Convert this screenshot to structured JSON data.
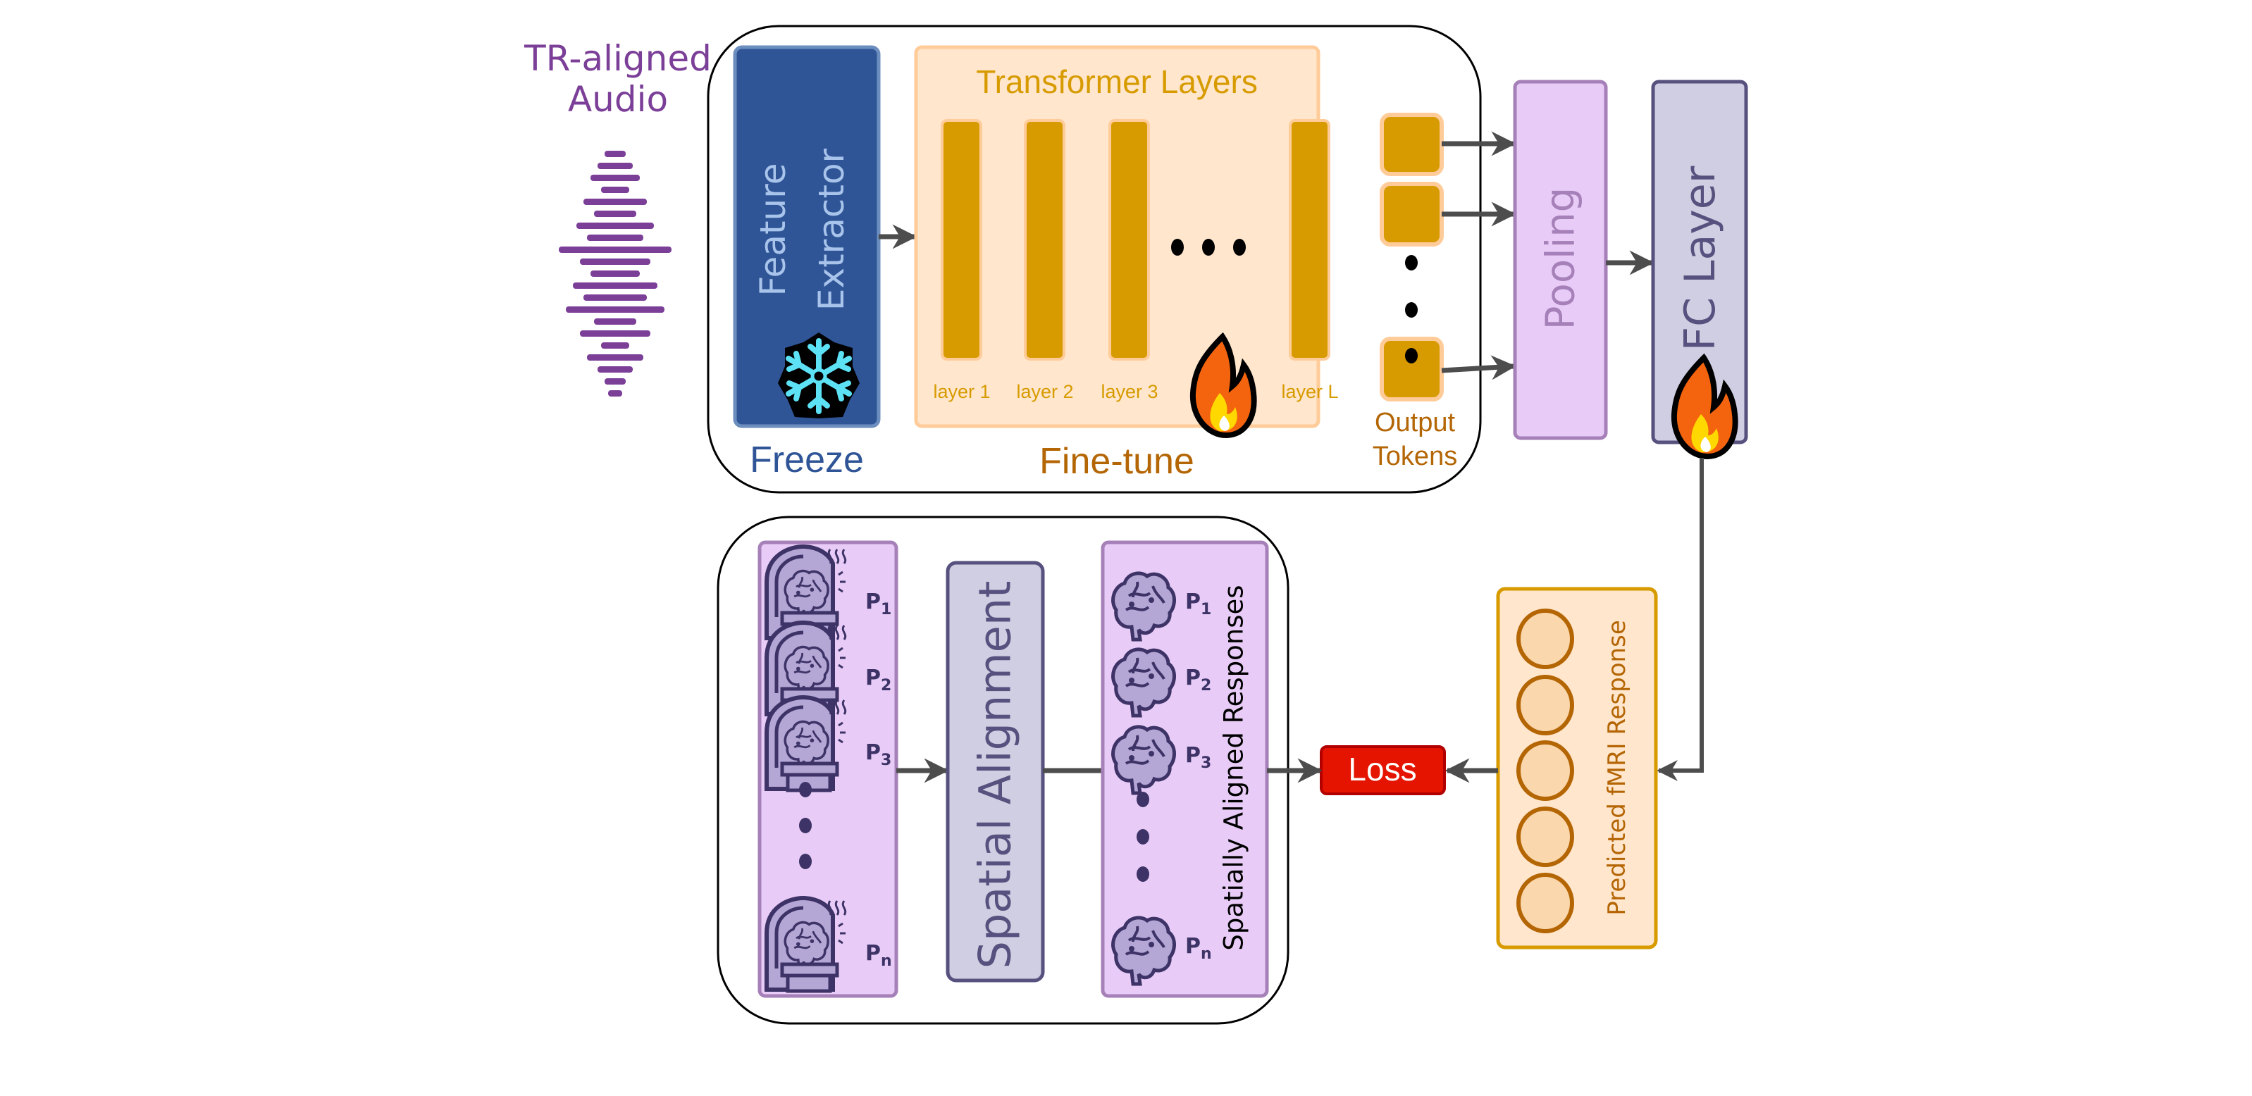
{
  "input": {
    "title_line1": "TR-aligned",
    "title_line2": "Audio"
  },
  "encoder": {
    "feature_extractor_line1": "Feature",
    "feature_extractor_line2": "Extractor",
    "freeze_label": "Freeze",
    "transformer_title": "Transformer Layers",
    "layers": [
      "layer 1",
      "layer 2",
      "layer 3",
      "layer L"
    ],
    "finetune_label": "Fine-tune",
    "output_tokens_line1": "Output",
    "output_tokens_line2": "Tokens"
  },
  "pooling_label": "Pooling",
  "fc_label": "FC Layer",
  "predicted_label": "Predicted fMRI Response",
  "loss_label": "Loss",
  "alignment": {
    "participant_letter": "P",
    "participants": [
      "1",
      "2",
      "3",
      "n"
    ],
    "spatial_alignment_label": "Spatial Alignment",
    "aligned_label": "Spatially Aligned Responses"
  },
  "icons": {
    "frozen": "snowflake-icon",
    "trainable": "fire-icon",
    "scanner": "mri-scanner-icon",
    "brain": "brain-icon",
    "audio": "waveform-icon"
  },
  "colors": {
    "audio": "#7b3f98",
    "feature_extractor": "#2f5597",
    "feature_text": "#a9c4eb",
    "transformer_fill": "#ffe6cc",
    "transformer_accent": "#d79b00",
    "finetune_text": "#b46504",
    "pooling_fill": "#e8ccf7",
    "pooling_stroke": "#a680b8",
    "fc_fill": "#d0cee2",
    "fc_stroke": "#56517e",
    "loss": "#e51400",
    "arrow": "#4d4d4d"
  }
}
